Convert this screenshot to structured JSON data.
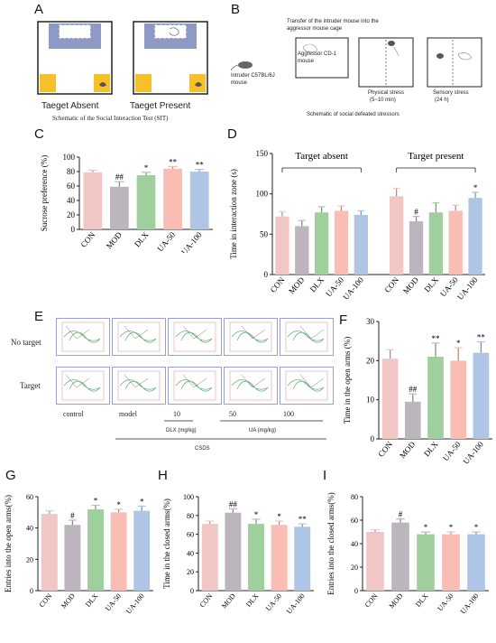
{
  "panels": {
    "A": "A",
    "B": "B",
    "C": "C",
    "D": "D",
    "E": "E",
    "F": "F",
    "G": "G",
    "H": "H",
    "I": "I"
  },
  "sit": {
    "absent_label": "Taeget Absent",
    "present_label": "Taeget Present",
    "caption": "Schematic of the Social Interaction Test (SIT)"
  },
  "defeat": {
    "transfer_text": "Transfer of the intruder mouse into the aggressor mouse cage",
    "intruder": "Intruder C57BL/6J mouse",
    "aggressor": "Aggressor CD-1 mouse",
    "physical": "Physical stress",
    "physical_time": "(5~10 min)",
    "sensory": "Sensory stress",
    "sensory_time": "(24 h)",
    "caption": "Schematic of social defeated stressors"
  },
  "maze": {
    "row_no_target": "No  target",
    "row_target": "Target",
    "col_labels": [
      "control",
      "model",
      "10",
      "50",
      "100"
    ],
    "dlx_dose": "DLX (mg/kg)",
    "ua_dose": "UA (mg/kg)",
    "csds": "CSDS"
  },
  "colors": {
    "CON": "#f0c7c5",
    "MOD": "#bdb5be",
    "DLX": "#9fcf9d",
    "UA-50": "#f9bdb3",
    "UA-100": "#aec5e5"
  },
  "chart_data": [
    {
      "id": "C",
      "type": "bar",
      "categories": [
        "CON",
        "MOD",
        "DLX",
        "UA-50",
        "UA-100"
      ],
      "values": [
        79,
        59,
        75,
        84,
        80
      ],
      "errors": [
        3,
        7,
        4,
        3,
        3
      ],
      "marks": [
        "",
        "##",
        "*",
        "**",
        "**"
      ],
      "ylabel": "Sucrose preference (%)",
      "ylim": [
        0,
        100
      ],
      "yticks": [
        0,
        20,
        40,
        60,
        80,
        100
      ]
    },
    {
      "id": "D",
      "type": "bar",
      "groups": [
        "Target absent",
        "Target present"
      ],
      "categories": [
        "CON",
        "MOD",
        "DLX",
        "UA-50",
        "UA-100",
        "CON",
        "MOD",
        "DLX",
        "UA-50",
        "UA-100"
      ],
      "values": [
        72,
        60,
        77,
        79,
        74,
        97,
        66,
        77,
        79,
        95
      ],
      "errors": [
        6,
        7,
        7,
        6,
        5,
        10,
        6,
        12,
        7,
        7
      ],
      "marks": [
        "",
        "",
        "",
        "",
        "",
        "",
        "#",
        "",
        "",
        "*"
      ],
      "ylabel": "Time in interaction zone (s)",
      "ylim": [
        0,
        150
      ],
      "yticks": [
        0,
        50,
        100,
        150
      ]
    },
    {
      "id": "F",
      "type": "bar",
      "categories": [
        "CON",
        "MOD",
        "DLX",
        "UA-50",
        "UA-100"
      ],
      "values": [
        20.5,
        9.5,
        21,
        20,
        22
      ],
      "errors": [
        2.3,
        2,
        3.5,
        3.3,
        2.8
      ],
      "marks": [
        "",
        "##",
        "**",
        "*",
        "**"
      ],
      "ylabel": "Time in the open arms (%)",
      "ylim": [
        0,
        30
      ],
      "yticks": [
        0,
        10,
        20,
        30
      ]
    },
    {
      "id": "G",
      "type": "bar",
      "categories": [
        "CON",
        "MOD",
        "DLX",
        "UA-50",
        "UA-100"
      ],
      "values": [
        49,
        42,
        52,
        50,
        51
      ],
      "errors": [
        2,
        3,
        2.5,
        2,
        3
      ],
      "marks": [
        "",
        "#",
        "*",
        "*",
        "*"
      ],
      "ylabel": "Entries into the open arms(%)",
      "ylim": [
        0,
        60
      ],
      "yticks": [
        0,
        20,
        40,
        60
      ]
    },
    {
      "id": "H",
      "type": "bar",
      "categories": [
        "CON",
        "MOD",
        "DLX",
        "UA-50",
        "UA-100"
      ],
      "values": [
        71,
        83,
        71,
        70,
        68
      ],
      "errors": [
        3,
        4,
        5,
        4,
        3
      ],
      "marks": [
        "",
        "##",
        "*",
        "*",
        "**"
      ],
      "ylabel": "Time in the closed arms(%)",
      "ylim": [
        0,
        100
      ],
      "yticks": [
        0,
        20,
        40,
        60,
        80,
        100
      ]
    },
    {
      "id": "I",
      "type": "bar",
      "categories": [
        "CON",
        "MOD",
        "DLX",
        "UA-50",
        "UA-100"
      ],
      "values": [
        50,
        58,
        48,
        48,
        48
      ],
      "errors": [
        2,
        3,
        2,
        2,
        2
      ],
      "marks": [
        "",
        "#",
        "*",
        "*",
        "*"
      ],
      "ylabel": "Entries into the closed arms(%)",
      "ylim": [
        0,
        80
      ],
      "yticks": [
        0,
        20,
        40,
        60,
        80
      ]
    }
  ]
}
